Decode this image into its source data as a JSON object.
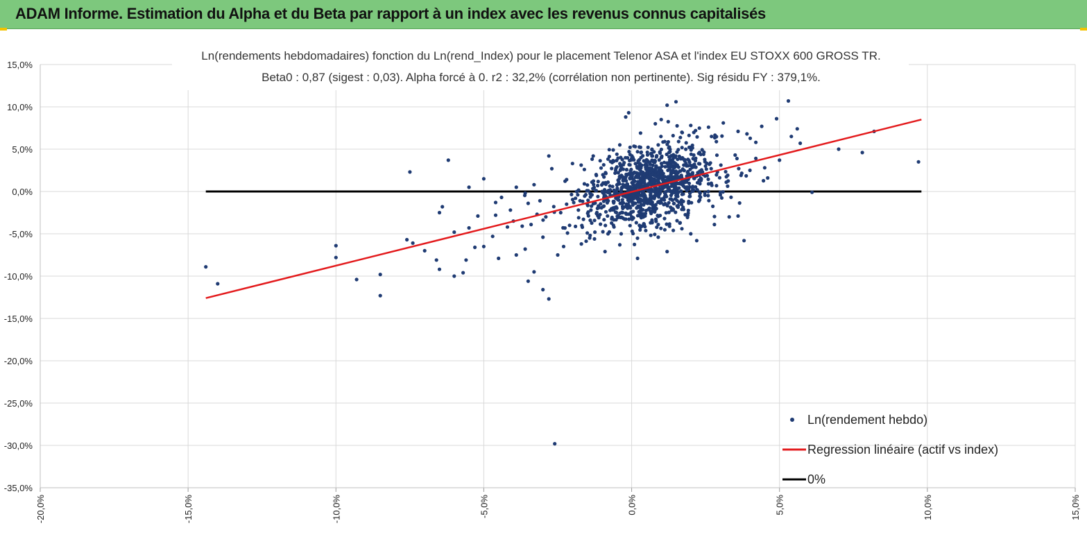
{
  "banner": {
    "title": "ADAM Informe. Estimation du Alpha et du Beta par rapport à un index avec les revenus connus capitalisés"
  },
  "colors": {
    "banner": "#7dc87d",
    "corner": "#f2c200",
    "points": "#1f3b73",
    "regression": "#e31a1c",
    "zero_line": "#000000",
    "grid": "#d9d9d9"
  },
  "chart_data": {
    "type": "scatter",
    "title_line1": "Ln(rendements hebdomadaires) fonction du Ln(rend_Index) pour le placement Telenor ASA et l'index EU STOXX 600 GROSS TR.",
    "title_line2": "Beta0 : 0,87 (sigest : 0,03). Alpha forcé à 0. r2 : 32,2% (corrélation non pertinente). Sig résidu FY : 379,1%.",
    "xlabel": "",
    "ylabel": "",
    "xlim": [
      -20,
      15
    ],
    "ylim": [
      -35,
      15
    ],
    "x_ticks": [
      -20,
      -15,
      -10,
      -5,
      0,
      5,
      10,
      15
    ],
    "y_ticks": [
      15,
      10,
      5,
      0,
      -5,
      -10,
      -15,
      -20,
      -25,
      -30,
      -35
    ],
    "x_tick_labels": [
      "-20,0%",
      "-15,0%",
      "-10,0%",
      "-5,0%",
      "0,0%",
      "5,0%",
      "10,0%",
      "15,0%"
    ],
    "y_tick_labels": [
      "15,0%",
      "10,0%",
      "5,0%",
      "0,0%",
      "-5,0%",
      "-10,0%",
      "-15,0%",
      "-20,0%",
      "-25,0%",
      "-30,0%",
      "-35,0%"
    ],
    "grid": true,
    "legend_position": "bottom-right",
    "series": [
      {
        "name": "Ln(rendement hebdo)",
        "kind": "scatter",
        "points": [
          [
            -14.4,
            -8.9
          ],
          [
            -14.0,
            -10.9
          ],
          [
            -10.0,
            -6.4
          ],
          [
            -10.0,
            -7.8
          ],
          [
            -9.3,
            -10.4
          ],
          [
            -8.5,
            -9.8
          ],
          [
            -8.5,
            -12.3
          ],
          [
            -7.5,
            2.3
          ],
          [
            -7.6,
            -5.7
          ],
          [
            -7.4,
            -6.1
          ],
          [
            -7.0,
            -7.0
          ],
          [
            -6.6,
            -8.1
          ],
          [
            -6.5,
            -9.2
          ],
          [
            -6.2,
            3.7
          ],
          [
            -6.5,
            -2.5
          ],
          [
            -6.4,
            -1.8
          ],
          [
            -6.0,
            -4.8
          ],
          [
            -6.0,
            -10.0
          ],
          [
            -5.7,
            -9.6
          ],
          [
            -5.6,
            -8.1
          ],
          [
            -5.5,
            0.5
          ],
          [
            -5.3,
            -6.6
          ],
          [
            -5.5,
            -4.3
          ],
          [
            -5.0,
            -6.5
          ],
          [
            -5.2,
            -2.9
          ],
          [
            -5.0,
            1.5
          ],
          [
            -4.7,
            -5.3
          ],
          [
            -4.6,
            -1.3
          ],
          [
            -4.5,
            -7.9
          ],
          [
            -4.2,
            -4.2
          ],
          [
            -4.0,
            -3.5
          ],
          [
            -3.9,
            -7.5
          ],
          [
            -3.6,
            -6.8
          ],
          [
            -3.5,
            -10.6
          ],
          [
            -3.3,
            -9.5
          ],
          [
            -3.0,
            -11.6
          ],
          [
            -2.8,
            -12.7
          ],
          [
            -3.4,
            -3.9
          ],
          [
            -3.2,
            -2.7
          ],
          [
            -3.1,
            -1.1
          ],
          [
            -3.3,
            0.8
          ],
          [
            -2.8,
            4.2
          ],
          [
            -2.5,
            -7.5
          ],
          [
            -2.3,
            -6.5
          ],
          [
            -2.6,
            -29.8
          ],
          [
            -2.2,
            1.4
          ],
          [
            -1.8,
            -2.2
          ],
          [
            -1.5,
            -4.9
          ],
          [
            -1.2,
            2.0
          ],
          [
            -0.4,
            5.5
          ],
          [
            -0.2,
            8.8
          ],
          [
            -0.1,
            9.3
          ],
          [
            0.3,
            6.9
          ],
          [
            0.8,
            8.0
          ],
          [
            1.0,
            8.5
          ],
          [
            1.4,
            6.6
          ],
          [
            1.2,
            10.2
          ],
          [
            1.5,
            10.6
          ],
          [
            2.0,
            7.8
          ],
          [
            2.6,
            7.6
          ],
          [
            3.1,
            8.1
          ],
          [
            3.6,
            7.1
          ],
          [
            3.9,
            6.8
          ],
          [
            4.2,
            5.8
          ],
          [
            4.4,
            7.7
          ],
          [
            4.9,
            8.6
          ],
          [
            5.0,
            3.7
          ],
          [
            5.3,
            10.7
          ],
          [
            5.4,
            6.5
          ],
          [
            5.6,
            7.4
          ],
          [
            5.7,
            5.7
          ],
          [
            4.6,
            1.6
          ],
          [
            6.1,
            -0.1
          ],
          [
            7.0,
            5.0
          ],
          [
            7.8,
            4.6
          ],
          [
            8.2,
            7.1
          ],
          [
            9.7,
            3.5
          ],
          [
            3.6,
            -2.9
          ],
          [
            3.8,
            -5.8
          ],
          [
            2.2,
            -5.8
          ],
          [
            1.2,
            -7.1
          ],
          [
            0.2,
            -7.9
          ],
          [
            -0.4,
            -6.3
          ],
          [
            -0.8,
            -5.0
          ],
          [
            1.7,
            -4.4
          ],
          [
            0.9,
            -5.4
          ],
          [
            2.8,
            -3.9
          ],
          [
            3.3,
            -3.0
          ],
          [
            2.0,
            -5.0
          ],
          [
            -0.9,
            -7.1
          ],
          [
            -1.7,
            -6.2
          ],
          [
            -2.1,
            -4.0
          ],
          [
            -4.1,
            -2.2
          ],
          [
            -3.5,
            -1.4
          ],
          [
            -4.4,
            -0.7
          ],
          [
            -3.9,
            0.5
          ],
          [
            3.2,
            1.1
          ],
          [
            4.0,
            2.5
          ],
          [
            2.5,
            3.0
          ],
          [
            2.7,
            6.5
          ],
          [
            1.7,
            7.0
          ],
          [
            0.9,
            5.5
          ],
          [
            -0.5,
            4.4
          ],
          [
            -1.3,
            4.2
          ],
          [
            -2.0,
            3.3
          ],
          [
            -2.7,
            2.7
          ],
          [
            -1.6,
            0.9
          ],
          [
            -0.3,
            -0.5
          ],
          [
            0.5,
            0.7
          ],
          [
            1.1,
            1.3
          ],
          [
            0.3,
            2.1
          ],
          [
            0.7,
            -1.5
          ],
          [
            1.6,
            0.4
          ],
          [
            2.2,
            1.8
          ],
          [
            -0.8,
            1.1
          ],
          [
            -1.1,
            -1.9
          ],
          [
            0.0,
            -3.0
          ],
          [
            1.4,
            -2.2
          ],
          [
            2.3,
            -1.0
          ],
          [
            -0.5,
            2.9
          ],
          [
            0.6,
            3.4
          ],
          [
            1.8,
            3.6
          ],
          [
            -1.4,
            -3.4
          ],
          [
            -2.4,
            -2.5
          ],
          [
            3.0,
            -0.4
          ],
          [
            0.9,
            -3.9
          ],
          [
            -1.9,
            -0.8
          ],
          [
            -0.2,
            1.7
          ],
          [
            1.3,
            -0.9
          ],
          [
            0.2,
            4.7
          ],
          [
            2.1,
            4.3
          ],
          [
            -3.0,
            -5.4
          ],
          [
            -2.9,
            -3.0
          ],
          [
            -4.6,
            -2.8
          ],
          [
            -3.7,
            -4.1
          ],
          [
            3.5,
            4.3
          ],
          [
            4.2,
            3.9
          ],
          [
            2.9,
            2.3
          ],
          [
            -0.6,
            -1.2
          ],
          [
            0.4,
            -0.3
          ],
          [
            1.0,
            0.2
          ],
          [
            1.5,
            2.4
          ],
          [
            -1.0,
            0.0
          ],
          [
            0.1,
            0.6
          ],
          [
            0.8,
            1.9
          ],
          [
            -0.3,
            -2.0
          ],
          [
            1.9,
            -2.8
          ],
          [
            2.6,
            0.9
          ],
          [
            -2.2,
            -1.5
          ],
          [
            -1.6,
            2.6
          ],
          [
            0.0,
            3.9
          ],
          [
            3.7,
            1.9
          ],
          [
            4.5,
            2.8
          ],
          [
            -3.6,
            -0.2
          ]
        ]
      },
      {
        "name": "Regression linéaire (actif vs index)",
        "kind": "line",
        "x": [
          -14.4,
          9.8
        ],
        "y": [
          -12.6,
          8.5
        ]
      },
      {
        "name": "0%",
        "kind": "line",
        "x": [
          -14.4,
          9.8
        ],
        "y": [
          0,
          0
        ]
      }
    ],
    "cloud": {
      "center": [
        0.6,
        0.6
      ],
      "sd_x": 1.1,
      "sd_y": 2.2,
      "beta": 0.87,
      "n": 1100
    }
  }
}
